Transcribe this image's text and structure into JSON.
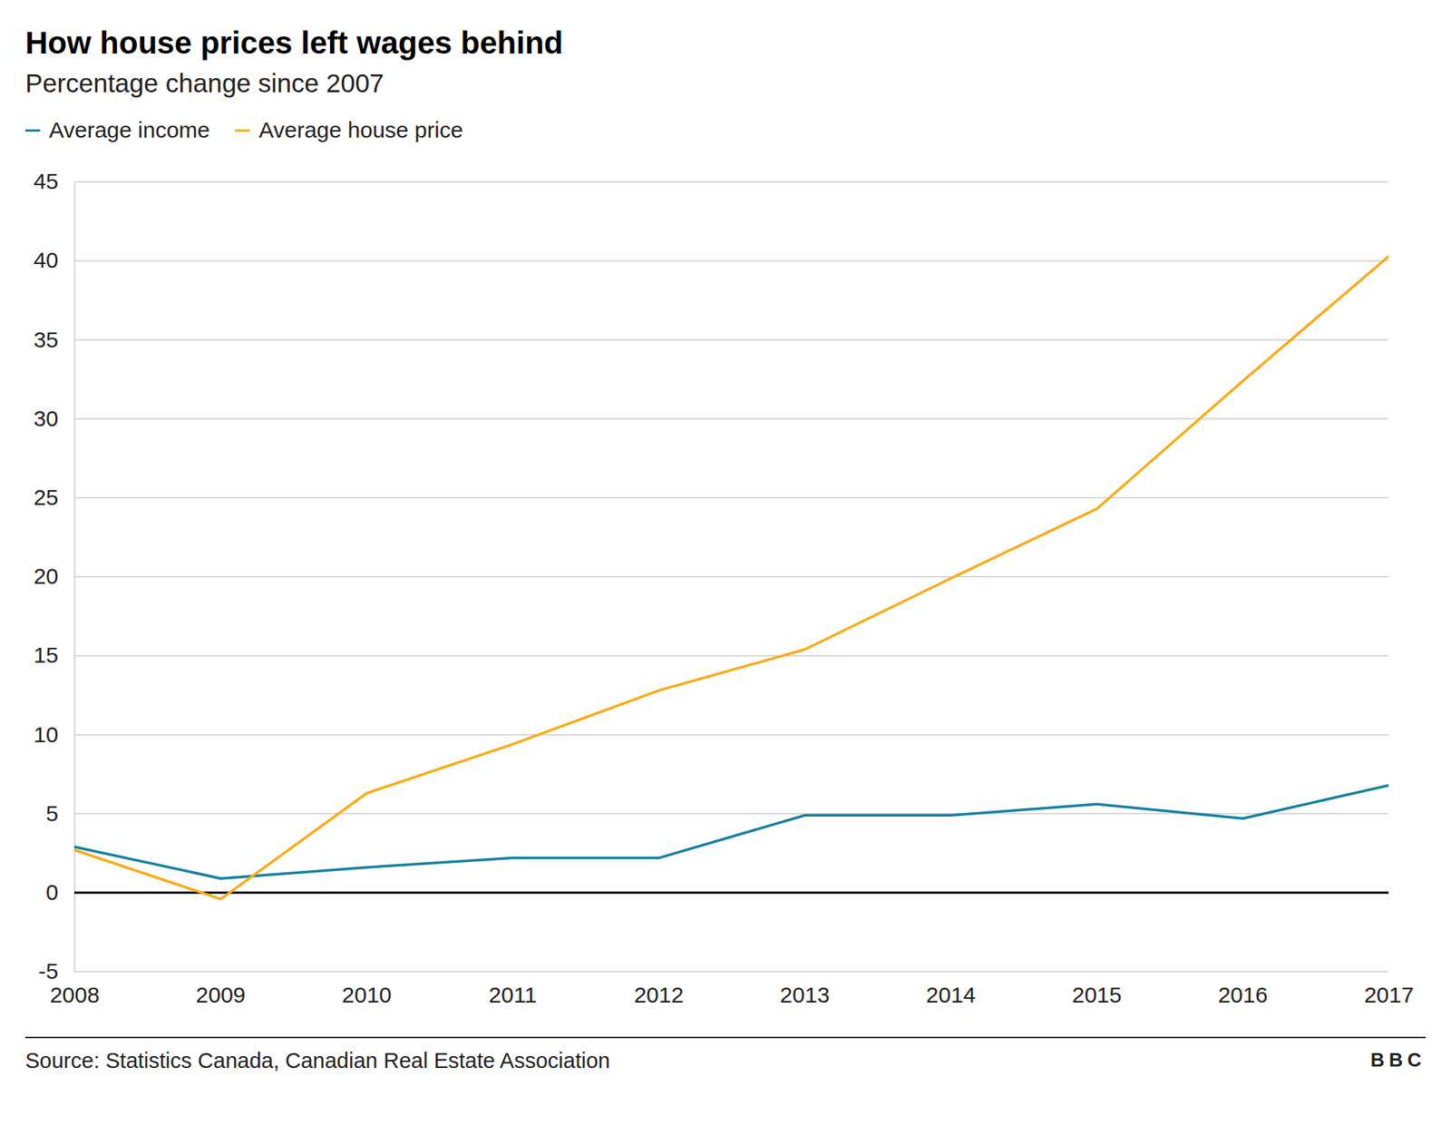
{
  "chart_data": {
    "type": "line",
    "title": "How house prices left wages behind",
    "subtitle": "Percentage change since 2007",
    "source": "Source: Statistics Canada, Canadian Real Estate Association",
    "credit": "BBC",
    "x": [
      2008,
      2009,
      2010,
      2011,
      2012,
      2013,
      2014,
      2015,
      2016,
      2017
    ],
    "series": [
      {
        "name": "Average income",
        "color": "#1380A1",
        "values": [
          2.9,
          0.9,
          1.6,
          2.2,
          2.2,
          4.9,
          4.9,
          5.6,
          4.7,
          6.8
        ]
      },
      {
        "name": "Average house price",
        "color": "#FAAB18",
        "values": [
          2.7,
          -0.4,
          6.3,
          9.4,
          12.8,
          15.4,
          19.9,
          24.3,
          32.4,
          40.3
        ]
      }
    ],
    "xlim": [
      2008,
      2017
    ],
    "xticks": [
      2008,
      2009,
      2010,
      2011,
      2012,
      2013,
      2014,
      2015,
      2016,
      2017
    ],
    "ylim": [
      -5,
      45
    ],
    "yticks": [
      -5,
      0,
      5,
      10,
      15,
      20,
      25,
      30,
      35,
      40,
      45
    ],
    "grid": true,
    "legend": "top-left"
  }
}
